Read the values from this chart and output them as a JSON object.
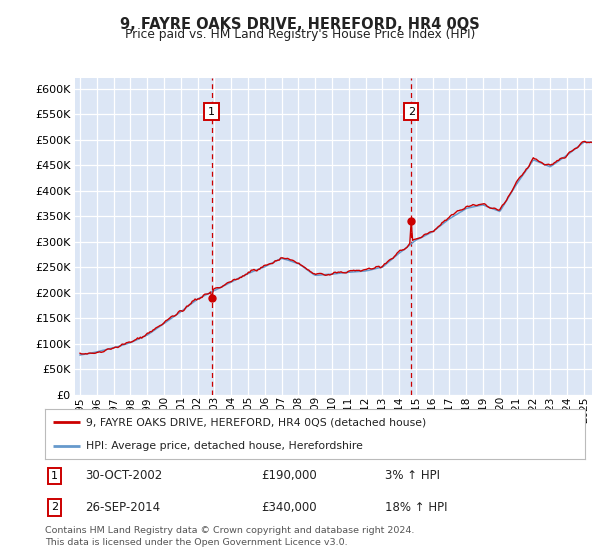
{
  "title": "9, FAYRE OAKS DRIVE, HEREFORD, HR4 0QS",
  "subtitle": "Price paid vs. HM Land Registry's House Price Index (HPI)",
  "bg_color": "#dce6f5",
  "ylim": [
    0,
    620000
  ],
  "yticks": [
    0,
    50000,
    100000,
    150000,
    200000,
    250000,
    300000,
    350000,
    400000,
    450000,
    500000,
    550000,
    600000
  ],
  "xlim_start": 1994.7,
  "xlim_end": 2025.5,
  "sale1_x": 2002.83,
  "sale1_y": 190000,
  "sale2_x": 2014.73,
  "sale2_y": 340000,
  "line1_label": "9, FAYRE OAKS DRIVE, HEREFORD, HR4 0QS (detached house)",
  "line1_color": "#cc0000",
  "line2_label": "HPI: Average price, detached house, Herefordshire",
  "line2_color": "#6699cc",
  "footer1": "Contains HM Land Registry data © Crown copyright and database right 2024.",
  "footer2": "This data is licensed under the Open Government Licence v3.0.",
  "annotation1_date": "30-OCT-2002",
  "annotation1_price": "£190,000",
  "annotation1_hpi": "3% ↑ HPI",
  "annotation2_date": "26-SEP-2014",
  "annotation2_price": "£340,000",
  "annotation2_hpi": "18% ↑ HPI",
  "xtick_years": [
    1995,
    1996,
    1997,
    1998,
    1999,
    2000,
    2001,
    2002,
    2003,
    2004,
    2005,
    2006,
    2007,
    2008,
    2009,
    2010,
    2011,
    2012,
    2013,
    2014,
    2015,
    2016,
    2017,
    2018,
    2019,
    2020,
    2021,
    2022,
    2023,
    2024,
    2025
  ],
  "hpi_anchors_x": [
    1995,
    1996,
    1997,
    1998,
    1999,
    2000,
    2001,
    2002,
    2003,
    2004,
    2005,
    2006,
    2007,
    2008,
    2009,
    2010,
    2011,
    2012,
    2013,
    2014,
    2015,
    2016,
    2017,
    2018,
    2019,
    2020,
    2021,
    2022,
    2023,
    2024,
    2025
  ],
  "hpi_anchors_y": [
    78000,
    84000,
    92000,
    103000,
    118000,
    140000,
    163000,
    188000,
    205000,
    222000,
    238000,
    252000,
    268000,
    258000,
    235000,
    238000,
    242000,
    245000,
    252000,
    280000,
    305000,
    322000,
    348000,
    368000,
    375000,
    362000,
    415000,
    462000,
    448000,
    470000,
    495000
  ]
}
